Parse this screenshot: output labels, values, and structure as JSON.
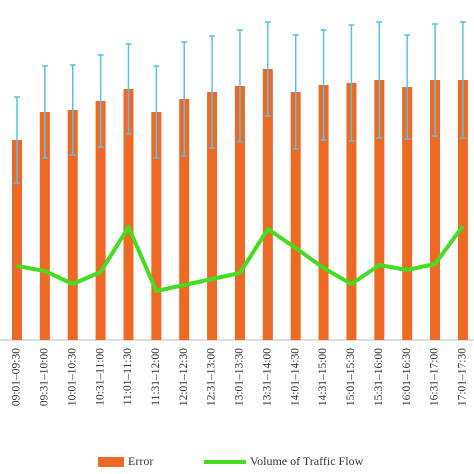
{
  "chart_data": {
    "type": "bar_line",
    "categories": [
      "09:01–09:30",
      "09:31–10:00",
      "10:01–10:30",
      "10:31–11:00",
      "11:01–11:30",
      "11:31–12:00",
      "12:01–12:30",
      "12:31–13:00",
      "13:01–13:30",
      "13:31–14:00",
      "14:01–14:30",
      "14:31–15:00",
      "15:01–15:30",
      "15:31–16:00",
      "16:01–16:30",
      "16:31–17:00",
      "17:01–17:30"
    ],
    "series": [
      {
        "name": "Error",
        "color": "#ee6a24",
        "type": "bar",
        "values": [
          200,
          228,
          230,
          239,
          251,
          228,
          241,
          248,
          254,
          271,
          248,
          255,
          257,
          260,
          253,
          260,
          260
        ],
        "errors": [
          43,
          46,
          45,
          46,
          45,
          46,
          57,
          56,
          56,
          47,
          57,
          55,
          58,
          58,
          52,
          56,
          58
        ],
        "error_color": "#5bc0e6"
      },
      {
        "name": "Volume of Traffic Flow",
        "color": "#44dd22",
        "type": "line",
        "values": [
          74,
          69,
          56,
          68,
          113,
          49,
          55,
          61,
          67,
          111,
          92,
          72,
          56,
          75,
          70,
          76,
          114
        ]
      }
    ],
    "ylim": [
      0,
      340
    ]
  }
}
